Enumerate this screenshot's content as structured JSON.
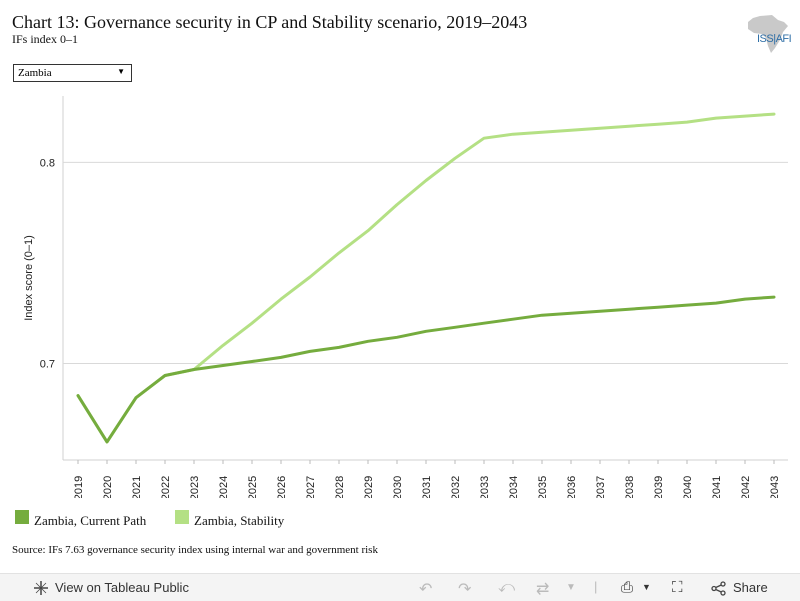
{
  "header": {
    "title": "Chart 13: Governance security in CP and Stability scenario, 2019–2043",
    "subtitle": "IFs index 0–1"
  },
  "logo": {
    "text": "ISS|AFI"
  },
  "filter": {
    "selected": "Zambia"
  },
  "chart_data": {
    "type": "line",
    "ylabel": "Index score (0–1)",
    "ylim": [
      0.652,
      0.833
    ],
    "yticks": [
      0.7,
      0.8
    ],
    "ytick_labels": [
      "0.7",
      "0.8"
    ],
    "grid": true,
    "x": [
      2019,
      2020,
      2021,
      2022,
      2023,
      2024,
      2025,
      2026,
      2027,
      2028,
      2029,
      2030,
      2031,
      2032,
      2033,
      2034,
      2035,
      2036,
      2037,
      2038,
      2039,
      2040,
      2041,
      2042,
      2043
    ],
    "series": [
      {
        "name": "Zambia, Current Path",
        "color": "#75ac3e",
        "values": [
          0.684,
          0.661,
          0.683,
          0.694,
          0.697,
          0.699,
          0.701,
          0.703,
          0.706,
          0.708,
          0.711,
          0.713,
          0.716,
          0.718,
          0.72,
          0.722,
          0.724,
          0.725,
          0.726,
          0.727,
          0.728,
          0.729,
          0.73,
          0.732,
          0.733
        ]
      },
      {
        "name": "Zambia, Stability",
        "color": "#b4e084",
        "values": [
          0.684,
          0.661,
          0.683,
          0.694,
          0.697,
          0.709,
          0.72,
          0.732,
          0.743,
          0.755,
          0.766,
          0.779,
          0.791,
          0.802,
          0.812,
          0.814,
          0.815,
          0.816,
          0.817,
          0.818,
          0.819,
          0.82,
          0.822,
          0.823,
          0.824
        ]
      }
    ],
    "legend_position": "bottom-left"
  },
  "source": "Source: IFs 7.63 governance security index using internal war and government risk",
  "toolbar": {
    "view_label": "View on Tableau Public",
    "share_label": "Share"
  }
}
